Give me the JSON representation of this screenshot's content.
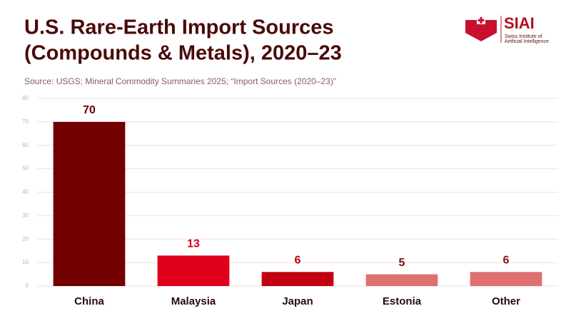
{
  "chart_data": {
    "type": "bar",
    "title": [
      "U.S. Rare-Earth Import Sources",
      "(Compounds & Metals), 2020–23"
    ],
    "subtitle": "Source: USGS; Mineral Commodity Summaries 2025; “Import Sources (2020–23)”",
    "categories": [
      "China",
      "Malaysia",
      "Japan",
      "Estonia",
      "Other"
    ],
    "values": [
      70,
      13,
      6,
      5,
      6
    ],
    "colors": [
      "#720000",
      "#e0001b",
      "#c20010",
      "#e07070",
      "#e07070"
    ],
    "value_label_colors": [
      "#6b0000",
      "#d0001a",
      "#c00010",
      "#7a1010",
      "#8a1010"
    ],
    "ylim": [
      0,
      80
    ],
    "yticks": [
      0,
      10,
      20,
      30,
      40,
      50,
      60,
      70,
      80
    ],
    "grid": true
  },
  "logo": {
    "name": "SIAI",
    "subtitle_lines": [
      "Swiss Institute of",
      "Artificial Intelligence"
    ]
  }
}
